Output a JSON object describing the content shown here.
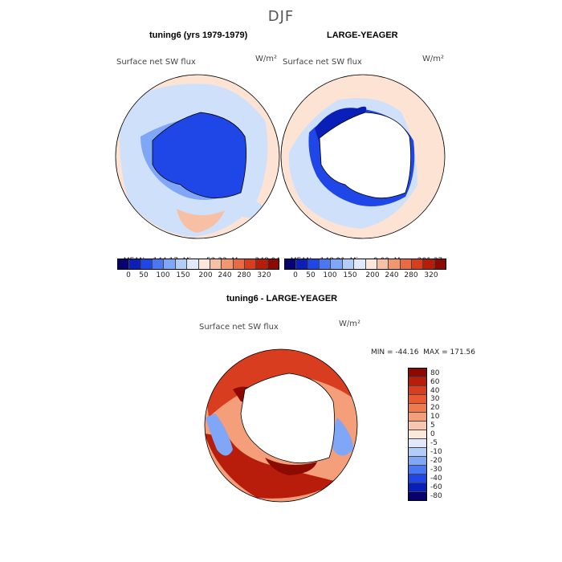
{
  "figure": {
    "season": "DJF",
    "top_left": {
      "title": "tuning6 (yrs 1979-1979)",
      "variable": "Surface net SW flux",
      "units": "W/m²",
      "stats": {
        "mean": "144.17",
        "min": "52.32",
        "max": "248.04"
      }
    },
    "top_right": {
      "title": "LARGE-YEAGER",
      "variable": "Surface net SW flux",
      "units": "W/m²",
      "stats": {
        "mean": "148.91",
        "min": "0.00",
        "max": "201.37"
      }
    },
    "bottom": {
      "title": "tuning6 - LARGE-YEAGER",
      "variable": "Surface net SW flux",
      "units": "W/m²",
      "minmax": "MIN = -44.16  MAX = 171.56"
    },
    "labels": {
      "mean": "MEAN=",
      "min": "Min=",
      "max": "Max="
    }
  },
  "colorbars": {
    "abs": {
      "levels": [
        "0",
        "50",
        "100",
        "150",
        "200",
        "240",
        "280",
        "320"
      ],
      "colors": [
        "#08006e",
        "#0a1fb8",
        "#1f46e6",
        "#4a78f2",
        "#7fa6f7",
        "#b3cdf9",
        "#dfe9fb",
        "#fbe7dc",
        "#f7c0a4",
        "#f29770",
        "#ea6a43",
        "#d93d1f",
        "#b81c0a",
        "#8c0a02"
      ]
    },
    "diff": {
      "levels": [
        "80",
        "60",
        "40",
        "30",
        "20",
        "10",
        "5",
        "0",
        "-5",
        "-10",
        "-20",
        "-30",
        "-40",
        "-60",
        "-80"
      ],
      "colors": [
        "#8c0a02",
        "#b81c0a",
        "#d93d1f",
        "#ea5a30",
        "#f07a4e",
        "#f49e7a",
        "#f8c6ae",
        "#fbe7dc",
        "#dfe9fb",
        "#b3cdf9",
        "#7fa6f7",
        "#4a78f2",
        "#1f46e6",
        "#0a1fb8",
        "#08006e"
      ]
    }
  },
  "colors": {
    "ice_blue": "#1f46e6",
    "light_blue": "#cfe0fb",
    "light_peach": "#fde3d4",
    "land": "#ffffff",
    "coast": "#000000"
  }
}
